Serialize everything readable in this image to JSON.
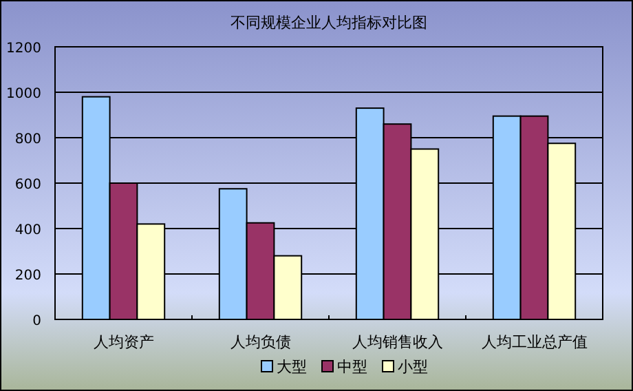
{
  "chart_data": {
    "type": "bar",
    "title": "不同规模企业人均指标对比图",
    "categories": [
      "人均资产",
      "人均负债",
      "人均销售收入",
      "人均工业总产值"
    ],
    "series": [
      {
        "name": "大型",
        "color": "#99ccff",
        "values": [
          980,
          575,
          930,
          895
        ]
      },
      {
        "name": "中型",
        "color": "#993366",
        "values": [
          600,
          425,
          860,
          895
        ]
      },
      {
        "name": "小型",
        "color": "#ffffcc",
        "values": [
          420,
          280,
          750,
          775
        ]
      }
    ],
    "ylim": [
      0,
      1200
    ],
    "yticks": [
      0,
      200,
      400,
      600,
      800,
      1000,
      1200
    ],
    "grid": "y",
    "legend": "bottom"
  }
}
